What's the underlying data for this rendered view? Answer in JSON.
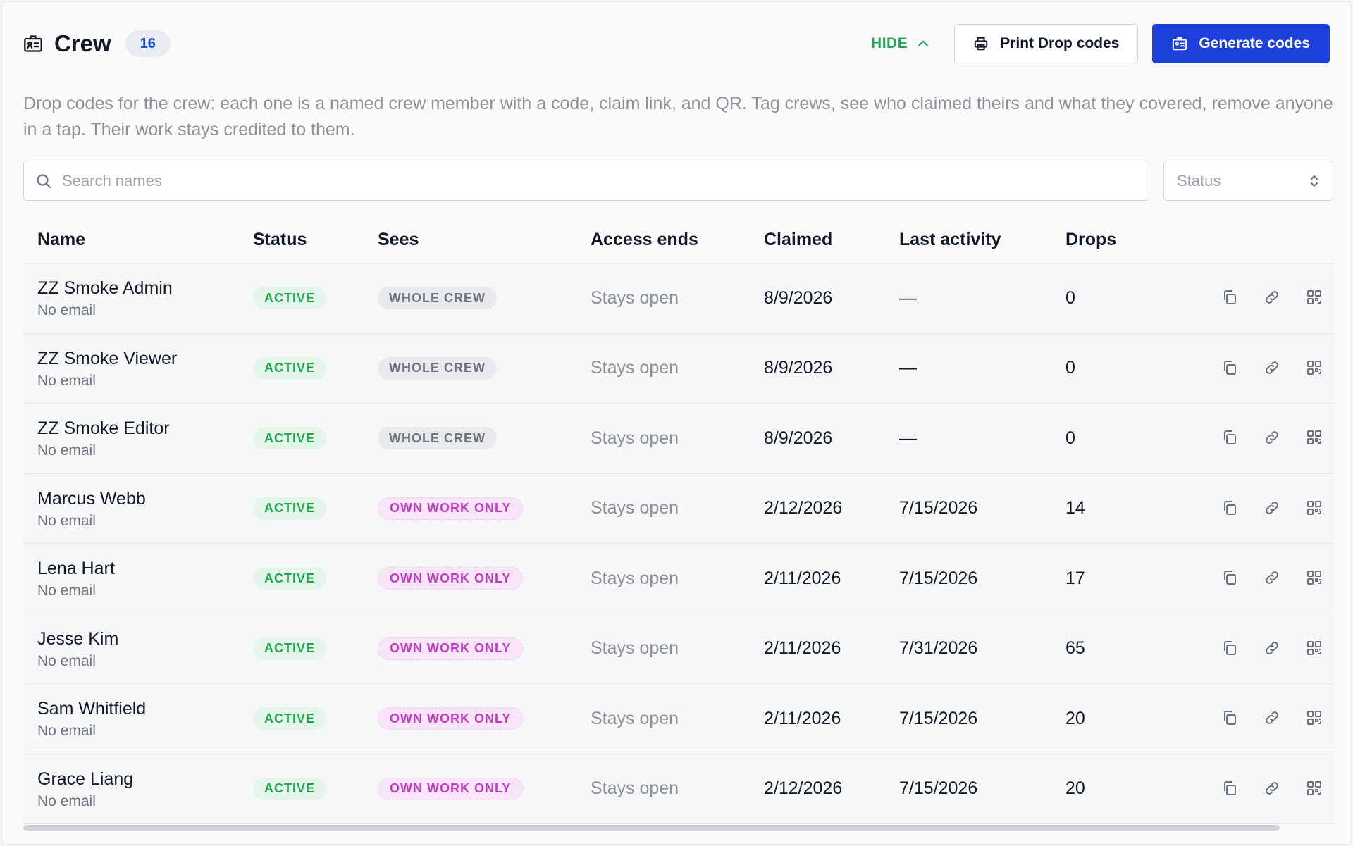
{
  "header": {
    "title": "Crew",
    "count": "16",
    "hide_label": "HIDE",
    "print_label": "Print Drop codes",
    "generate_label": "Generate codes"
  },
  "description": "Drop codes for the crew: each one is a named crew member with a code, claim link, and QR. Tag crews, see who claimed theirs and what they covered, remove anyone in a tap. Their work stays credited to them.",
  "search": {
    "placeholder": "Search names",
    "value": ""
  },
  "status_filter": {
    "placeholder": "Status"
  },
  "table": {
    "columns": [
      "Name",
      "Status",
      "Sees",
      "Access ends",
      "Claimed",
      "Last activity",
      "Drops"
    ],
    "rows": [
      {
        "name": "ZZ Smoke Admin",
        "email": "No email",
        "status": "ACTIVE",
        "sees": "WHOLE CREW",
        "sees_type": "whole",
        "access_ends": "Stays open",
        "claimed": "8/9/2026",
        "last_activity": "—",
        "drops": "0"
      },
      {
        "name": "ZZ Smoke Viewer",
        "email": "No email",
        "status": "ACTIVE",
        "sees": "WHOLE CREW",
        "sees_type": "whole",
        "access_ends": "Stays open",
        "claimed": "8/9/2026",
        "last_activity": "—",
        "drops": "0"
      },
      {
        "name": "ZZ Smoke Editor",
        "email": "No email",
        "status": "ACTIVE",
        "sees": "WHOLE CREW",
        "sees_type": "whole",
        "access_ends": "Stays open",
        "claimed": "8/9/2026",
        "last_activity": "—",
        "drops": "0"
      },
      {
        "name": "Marcus Webb",
        "email": "No email",
        "status": "ACTIVE",
        "sees": "OWN WORK ONLY",
        "sees_type": "own",
        "access_ends": "Stays open",
        "claimed": "2/12/2026",
        "last_activity": "7/15/2026",
        "drops": "14"
      },
      {
        "name": "Lena Hart",
        "email": "No email",
        "status": "ACTIVE",
        "sees": "OWN WORK ONLY",
        "sees_type": "own",
        "access_ends": "Stays open",
        "claimed": "2/11/2026",
        "last_activity": "7/15/2026",
        "drops": "17"
      },
      {
        "name": "Jesse Kim",
        "email": "No email",
        "status": "ACTIVE",
        "sees": "OWN WORK ONLY",
        "sees_type": "own",
        "access_ends": "Stays open",
        "claimed": "2/11/2026",
        "last_activity": "7/31/2026",
        "drops": "65"
      },
      {
        "name": "Sam Whitfield",
        "email": "No email",
        "status": "ACTIVE",
        "sees": "OWN WORK ONLY",
        "sees_type": "own",
        "access_ends": "Stays open",
        "claimed": "2/11/2026",
        "last_activity": "7/15/2026",
        "drops": "20"
      },
      {
        "name": "Grace Liang",
        "email": "No email",
        "status": "ACTIVE",
        "sees": "OWN WORK ONLY",
        "sees_type": "own",
        "access_ends": "Stays open",
        "claimed": "2/12/2026",
        "last_activity": "7/15/2026",
        "drops": "20"
      }
    ]
  },
  "icons": {
    "title": "id-badge-icon",
    "hide": "chevron-up-icon",
    "print": "printer-icon",
    "generate": "id-badge-icon",
    "search": "search-icon",
    "status": "chevron-up-down-icon",
    "row_actions": [
      "copy-icon",
      "link-icon",
      "qr-code-icon"
    ]
  },
  "colors": {
    "primary": "#1d3fdc",
    "success": "#22a652",
    "own_work": "#c03cc8",
    "count_badge": "#1d4ed8"
  }
}
